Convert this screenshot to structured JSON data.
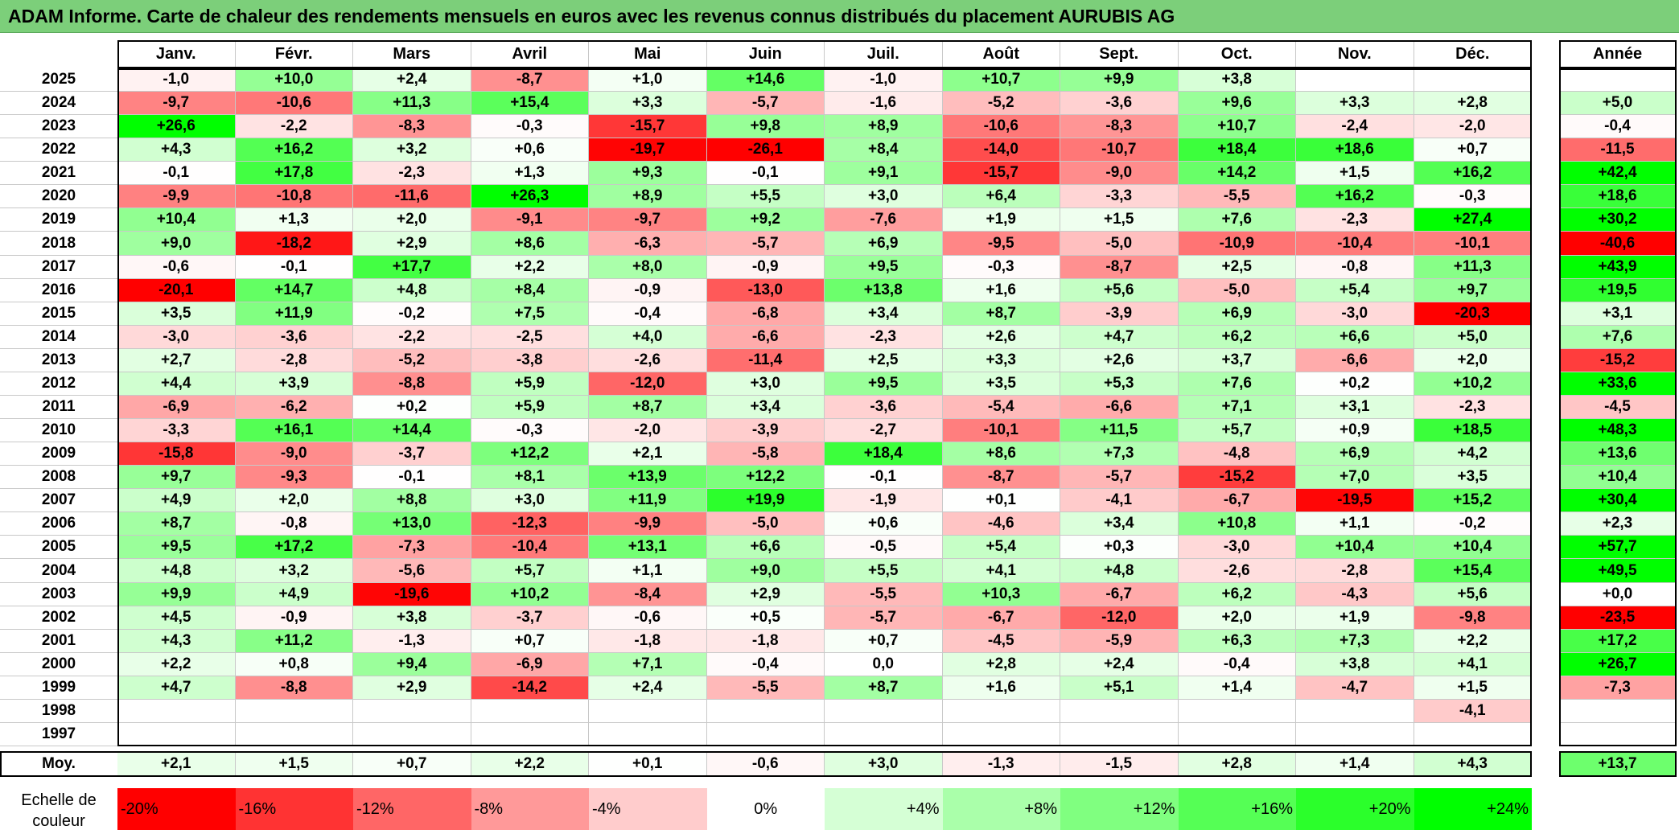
{
  "title": "ADAM Informe. Carte de chaleur des rendements mensuels en euros avec les revenus connus distribués du placement AURUBIS AG",
  "months": [
    "Janv.",
    "Févr.",
    "Mars",
    "Avril",
    "Mai",
    "Juin",
    "Juil.",
    "Août",
    "Sept.",
    "Oct.",
    "Nov.",
    "Déc."
  ],
  "year_header": "Année",
  "avg_label": "Moy.",
  "legend_label": "Echelle de couleur",
  "legend_ticks": [
    "-20%",
    "-16%",
    "-12%",
    "-8%",
    "-4%",
    "0%",
    "+4%",
    "+8%",
    "+12%",
    "+16%",
    "+20%",
    "+24%"
  ],
  "chart_data": {
    "type": "heatmap",
    "title": "ADAM Informe. Carte de chaleur des rendements mensuels en euros avec les revenus connus distribués du placement AURUBIS AG",
    "columns": [
      "Janv.",
      "Févr.",
      "Mars",
      "Avril",
      "Mai",
      "Juin",
      "Juil.",
      "Août",
      "Sept.",
      "Oct.",
      "Nov.",
      "Déc.",
      "Année"
    ],
    "color_scale": {
      "min": -20,
      "max": 24,
      "negative": "#ff0000",
      "neutral": "#ffffff",
      "positive": "#00ff00"
    },
    "rows": [
      {
        "year": "2025",
        "values": [
          "-1,0",
          "+10,0",
          "+2,4",
          "-8,7",
          "+1,0",
          "+14,6",
          "-1,0",
          "+10,7",
          "+9,9",
          "+3,8",
          "",
          "",
          ""
        ]
      },
      {
        "year": "2024",
        "values": [
          "-9,7",
          "-10,6",
          "+11,3",
          "+15,4",
          "+3,3",
          "-5,7",
          "-1,6",
          "-5,2",
          "-3,6",
          "+9,6",
          "+3,3",
          "+2,8",
          "+5,0"
        ]
      },
      {
        "year": "2023",
        "values": [
          "+26,6",
          "-2,2",
          "-8,3",
          "-0,3",
          "-15,7",
          "+9,8",
          "+8,9",
          "-10,6",
          "-8,3",
          "+10,7",
          "-2,4",
          "-2,0",
          "-0,4"
        ]
      },
      {
        "year": "2022",
        "values": [
          "+4,3",
          "+16,2",
          "+3,2",
          "+0,6",
          "-19,7",
          "-26,1",
          "+8,4",
          "-14,0",
          "-10,7",
          "+18,4",
          "+18,6",
          "+0,7",
          "-11,5"
        ]
      },
      {
        "year": "2021",
        "values": [
          "-0,1",
          "+17,8",
          "-2,3",
          "+1,3",
          "+9,3",
          "-0,1",
          "+9,1",
          "-15,7",
          "-9,0",
          "+14,2",
          "+1,5",
          "+16,2",
          "+42,4"
        ]
      },
      {
        "year": "2020",
        "values": [
          "-9,9",
          "-10,8",
          "-11,6",
          "+26,3",
          "+8,9",
          "+5,5",
          "+3,0",
          "+6,4",
          "-3,3",
          "-5,5",
          "+16,2",
          "-0,3",
          "+18,6"
        ]
      },
      {
        "year": "2019",
        "values": [
          "+10,4",
          "+1,3",
          "+2,0",
          "-9,1",
          "-9,7",
          "+9,2",
          "-7,6",
          "+1,9",
          "+1,5",
          "+7,6",
          "-2,3",
          "+27,4",
          "+30,2"
        ]
      },
      {
        "year": "2018",
        "values": [
          "+9,0",
          "-18,2",
          "+2,9",
          "+8,6",
          "-6,3",
          "-5,7",
          "+6,9",
          "-9,5",
          "-5,0",
          "-10,9",
          "-10,4",
          "-10,1",
          "-40,6"
        ]
      },
      {
        "year": "2017",
        "values": [
          "-0,6",
          "-0,1",
          "+17,7",
          "+2,2",
          "+8,0",
          "-0,9",
          "+9,5",
          "-0,3",
          "-8,7",
          "+2,5",
          "-0,8",
          "+11,3",
          "+43,9"
        ]
      },
      {
        "year": "2016",
        "values": [
          "-20,1",
          "+14,7",
          "+4,8",
          "+8,4",
          "-0,9",
          "-13,0",
          "+13,8",
          "+1,6",
          "+5,6",
          "-5,0",
          "+5,4",
          "+9,7",
          "+19,5"
        ]
      },
      {
        "year": "2015",
        "values": [
          "+3,5",
          "+11,9",
          "-0,2",
          "+7,5",
          "-0,4",
          "-6,8",
          "+3,4",
          "+8,7",
          "-3,9",
          "+6,9",
          "-3,0",
          "-20,3",
          "+3,1"
        ]
      },
      {
        "year": "2014",
        "values": [
          "-3,0",
          "-3,6",
          "-2,2",
          "-2,5",
          "+4,0",
          "-6,6",
          "-2,3",
          "+2,6",
          "+4,7",
          "+6,2",
          "+6,6",
          "+5,0",
          "+7,6"
        ]
      },
      {
        "year": "2013",
        "values": [
          "+2,7",
          "-2,8",
          "-5,2",
          "-3,8",
          "-2,6",
          "-11,4",
          "+2,5",
          "+3,3",
          "+2,6",
          "+3,7",
          "-6,6",
          "+2,0",
          "-15,2"
        ]
      },
      {
        "year": "2012",
        "values": [
          "+4,4",
          "+3,9",
          "-8,8",
          "+5,9",
          "-12,0",
          "+3,0",
          "+9,5",
          "+3,5",
          "+5,3",
          "+7,6",
          "+0,2",
          "+10,2",
          "+33,6"
        ]
      },
      {
        "year": "2011",
        "values": [
          "-6,9",
          "-6,2",
          "+0,2",
          "+5,9",
          "+8,7",
          "+3,4",
          "-3,6",
          "-5,4",
          "-6,6",
          "+7,1",
          "+3,1",
          "-2,3",
          "-4,5"
        ]
      },
      {
        "year": "2010",
        "values": [
          "-3,3",
          "+16,1",
          "+14,4",
          "-0,3",
          "-2,0",
          "-3,9",
          "-2,7",
          "-10,1",
          "+11,5",
          "+5,7",
          "+0,9",
          "+18,5",
          "+48,3"
        ]
      },
      {
        "year": "2009",
        "values": [
          "-15,8",
          "-9,0",
          "-3,7",
          "+12,2",
          "+2,1",
          "-5,8",
          "+18,4",
          "+8,6",
          "+7,3",
          "-4,8",
          "+6,9",
          "+4,2",
          "+13,6"
        ]
      },
      {
        "year": "2008",
        "values": [
          "+9,7",
          "-9,3",
          "-0,1",
          "+8,1",
          "+13,9",
          "+12,2",
          "-0,1",
          "-8,7",
          "-5,7",
          "-15,2",
          "+7,0",
          "+3,5",
          "+10,4"
        ]
      },
      {
        "year": "2007",
        "values": [
          "+4,9",
          "+2,0",
          "+8,8",
          "+3,0",
          "+11,9",
          "+19,9",
          "-1,9",
          "+0,1",
          "-4,1",
          "-6,7",
          "-19,5",
          "+15,2",
          "+30,4"
        ]
      },
      {
        "year": "2006",
        "values": [
          "+8,7",
          "-0,8",
          "+13,0",
          "-12,3",
          "-9,9",
          "-5,0",
          "+0,6",
          "-4,6",
          "+3,4",
          "+10,8",
          "+1,1",
          "-0,2",
          "+2,3"
        ]
      },
      {
        "year": "2005",
        "values": [
          "+9,5",
          "+17,2",
          "-7,3",
          "-10,4",
          "+13,1",
          "+6,6",
          "-0,5",
          "+5,4",
          "+0,3",
          "-3,0",
          "+10,4",
          "+10,4",
          "+57,7"
        ]
      },
      {
        "year": "2004",
        "values": [
          "+4,8",
          "+3,2",
          "-5,6",
          "+5,7",
          "+1,1",
          "+9,0",
          "+5,5",
          "+4,1",
          "+4,8",
          "-2,6",
          "-2,8",
          "+15,4",
          "+49,5"
        ]
      },
      {
        "year": "2003",
        "values": [
          "+9,9",
          "+4,9",
          "-19,6",
          "+10,2",
          "-8,4",
          "+2,9",
          "-5,5",
          "+10,3",
          "-6,7",
          "+6,2",
          "-4,3",
          "+5,6",
          "+0,0"
        ]
      },
      {
        "year": "2002",
        "values": [
          "+4,5",
          "-0,9",
          "+3,8",
          "-3,7",
          "-0,6",
          "+0,5",
          "-5,7",
          "-6,7",
          "-12,0",
          "+2,0",
          "+1,9",
          "-9,8",
          "-23,5"
        ]
      },
      {
        "year": "2001",
        "values": [
          "+4,3",
          "+11,2",
          "-1,3",
          "+0,7",
          "-1,8",
          "-1,8",
          "+0,7",
          "-4,5",
          "-5,9",
          "+6,3",
          "+7,3",
          "+2,2",
          "+17,2"
        ]
      },
      {
        "year": "2000",
        "values": [
          "+2,2",
          "+0,8",
          "+9,4",
          "-6,9",
          "+7,1",
          "-0,4",
          "0,0",
          "+2,8",
          "+2,4",
          "-0,4",
          "+3,8",
          "+4,1",
          "+26,7"
        ]
      },
      {
        "year": "1999",
        "values": [
          "+4,7",
          "-8,8",
          "+2,9",
          "-14,2",
          "+2,4",
          "-5,5",
          "+8,7",
          "+1,6",
          "+5,1",
          "+1,4",
          "-4,7",
          "+1,5",
          "-7,3"
        ]
      },
      {
        "year": "1998",
        "values": [
          "",
          "",
          "",
          "",
          "",
          "",
          "",
          "",
          "",
          "",
          "",
          "-4,1",
          ""
        ]
      },
      {
        "year": "1997",
        "values": [
          "",
          "",
          "",
          "",
          "",
          "",
          "",
          "",
          "",
          "",
          "",
          "",
          ""
        ]
      }
    ],
    "average": [
      "+2,1",
      "+1,5",
      "+0,7",
      "+2,2",
      "+0,1",
      "-0,6",
      "+3,0",
      "-1,3",
      "-1,5",
      "+2,8",
      "+1,4",
      "+4,3",
      "+13,7"
    ]
  }
}
